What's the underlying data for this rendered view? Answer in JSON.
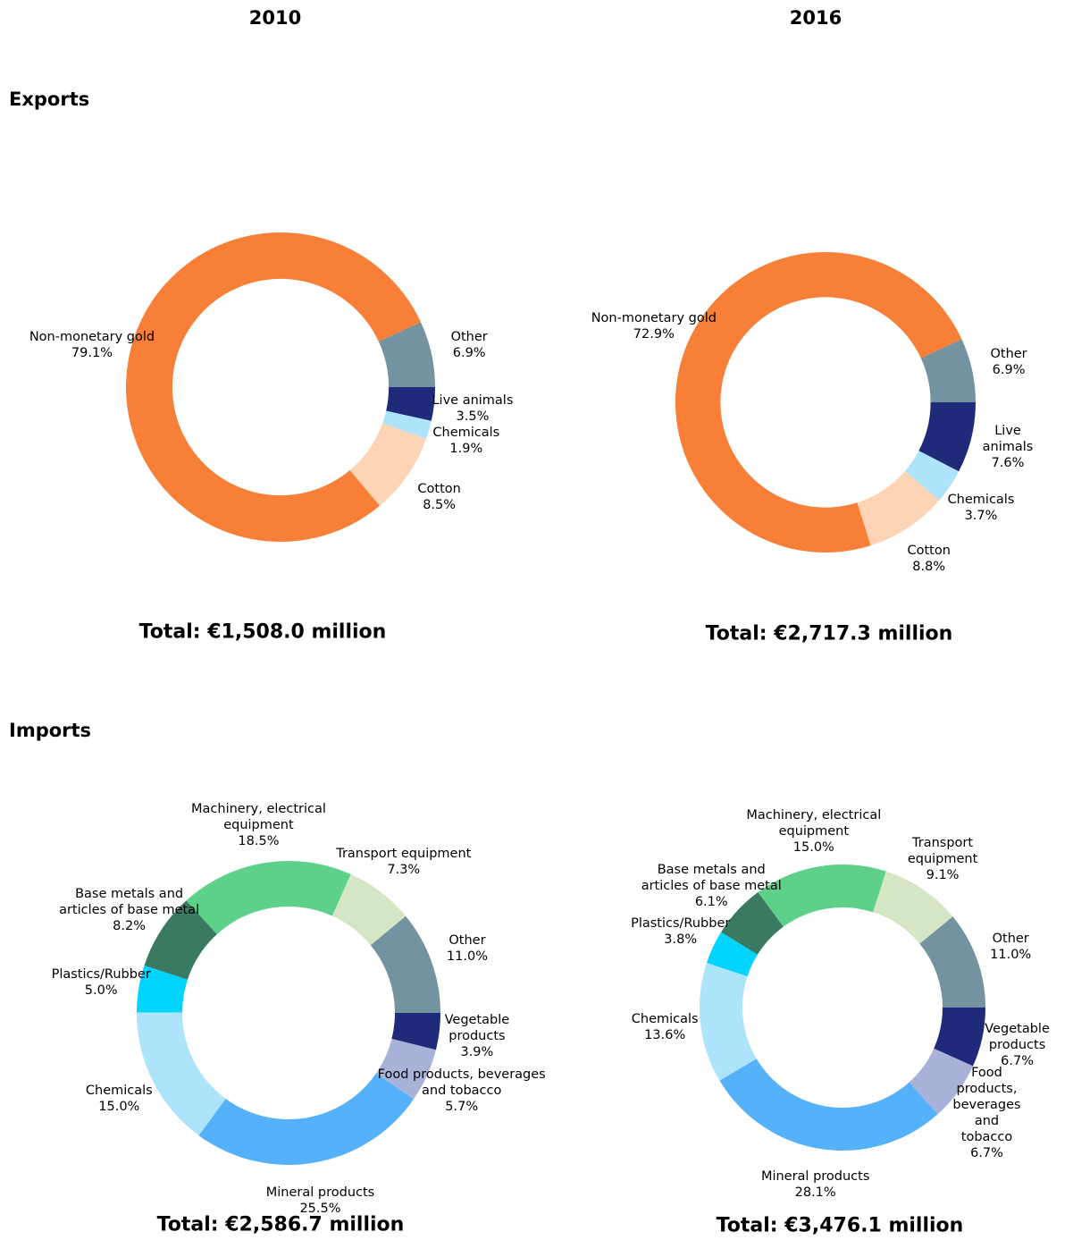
{
  "column_titles": [
    "2010",
    "2016"
  ],
  "row_titles": [
    "Exports",
    "Imports"
  ],
  "chart_data": [
    {
      "type": "donut",
      "subtitle": "Total: €1,508.0 million",
      "categories": [
        "Other",
        "Non-monetary gold",
        "Cotton",
        "Chemicals",
        "Live animals"
      ],
      "values": [
        6.9,
        79.1,
        8.5,
        1.9,
        3.5
      ],
      "value_labels": [
        "6.9%",
        "79.1%",
        "8.5%",
        "1.9%",
        "3.5%"
      ],
      "colors": [
        "#7393a0",
        "#f77f38",
        "#fdd4b5",
        "#ade3fb",
        "#1f2a7a"
      ]
    },
    {
      "type": "donut",
      "subtitle": "Total: €2,717.3 million",
      "categories": [
        "Other",
        "Non-monetary gold",
        "Cotton",
        "Chemicals",
        "Live animals"
      ],
      "values": [
        6.9,
        72.9,
        8.8,
        3.7,
        7.6
      ],
      "value_labels": [
        "6.9%",
        "72.9%",
        "8.8%",
        "3.7%",
        "7.6%"
      ],
      "colors": [
        "#7393a0",
        "#f77f38",
        "#fdd4b5",
        "#ade3fb",
        "#1f2a7a"
      ]
    },
    {
      "type": "donut",
      "subtitle": "Total: €2,586.7 million",
      "categories": [
        "Other",
        "Transport equipment",
        "Machinery, electrical\nequipment",
        "Base metals and\narticles of base metal",
        "Plastics/Rubber",
        "Chemicals",
        "Mineral products",
        "Food products, beverages\nand tobacco",
        "Vegetable\nproducts"
      ],
      "values": [
        11.0,
        7.3,
        18.5,
        8.2,
        5.0,
        15.0,
        25.5,
        5.7,
        3.9
      ],
      "value_labels": [
        "11.0%",
        "7.3%",
        "18.5%",
        "8.2%",
        "5.0%",
        "15.0%",
        "25.5%",
        "5.7%",
        "3.9%"
      ],
      "colors": [
        "#7393a0",
        "#d4e6c4",
        "#5dd18a",
        "#3a7a60",
        "#00d4ff",
        "#ade3fb",
        "#55b2fa",
        "#a9b3da",
        "#1f2a7a"
      ]
    },
    {
      "type": "donut",
      "subtitle": "Total: €3,476.1 million",
      "categories": [
        "Other",
        "Transport\nequipment",
        "Machinery, electrical\nequipment",
        "Base metals and\narticles of base metal",
        "Plastics/Rubber",
        "Chemicals",
        "Mineral products",
        "Food products,\nbeverages and\ntobacco",
        "Vegetable\nproducts"
      ],
      "values": [
        11.0,
        9.1,
        15.0,
        6.1,
        3.8,
        13.6,
        28.1,
        6.7,
        6.7
      ],
      "value_labels": [
        "11.0%",
        "9.1%",
        "15.0%",
        "6.1%",
        "3.8%",
        "13.6%",
        "28.1%",
        "6.7%",
        "6.7%"
      ],
      "colors": [
        "#7393a0",
        "#d4e6c4",
        "#5dd18a",
        "#3a7a60",
        "#00d4ff",
        "#ade3fb",
        "#55b2fa",
        "#a9b3da",
        "#1f2a7a"
      ]
    }
  ]
}
